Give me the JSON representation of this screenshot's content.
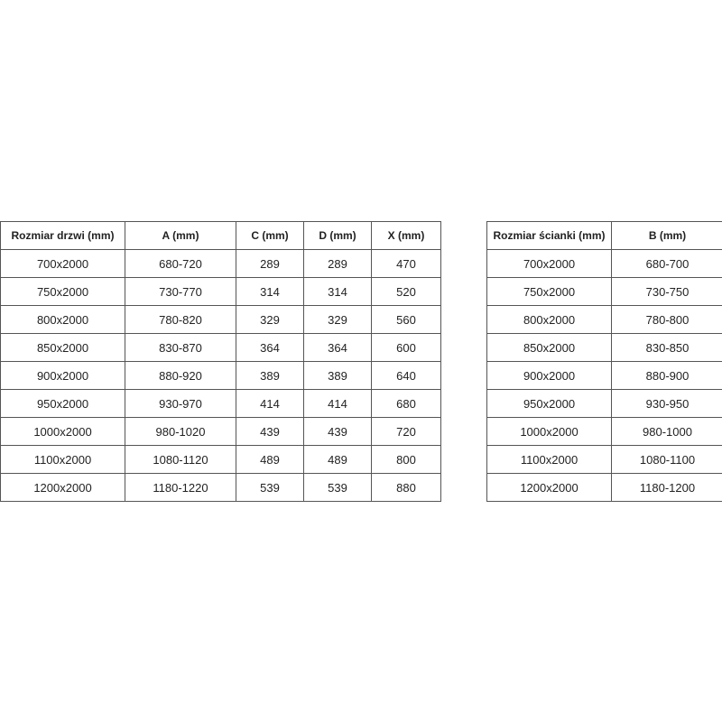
{
  "door_table": {
    "headers": [
      "Rozmiar drzwi (mm)",
      "A (mm)",
      "C (mm)",
      "D (mm)",
      "X (mm)"
    ],
    "rows": [
      [
        "700x2000",
        "680-720",
        "289",
        "289",
        "470"
      ],
      [
        "750x2000",
        "730-770",
        "314",
        "314",
        "520"
      ],
      [
        "800x2000",
        "780-820",
        "329",
        "329",
        "560"
      ],
      [
        "850x2000",
        "830-870",
        "364",
        "364",
        "600"
      ],
      [
        "900x2000",
        "880-920",
        "389",
        "389",
        "640"
      ],
      [
        "950x2000",
        "930-970",
        "414",
        "414",
        "680"
      ],
      [
        "1000x2000",
        "980-1020",
        "439",
        "439",
        "720"
      ],
      [
        "1100x2000",
        "1080-1120",
        "489",
        "489",
        "800"
      ],
      [
        "1200x2000",
        "1180-1220",
        "539",
        "539",
        "880"
      ]
    ]
  },
  "wall_table": {
    "headers": [
      "Rozmiar ścianki (mm)",
      "B (mm)"
    ],
    "rows": [
      [
        "700x2000",
        "680-700"
      ],
      [
        "750x2000",
        "730-750"
      ],
      [
        "800x2000",
        "780-800"
      ],
      [
        "850x2000",
        "830-850"
      ],
      [
        "900x2000",
        "880-900"
      ],
      [
        "950x2000",
        "930-950"
      ],
      [
        "1000x2000",
        "980-1000"
      ],
      [
        "1100x2000",
        "1080-1100"
      ],
      [
        "1200x2000",
        "1180-1200"
      ]
    ]
  }
}
